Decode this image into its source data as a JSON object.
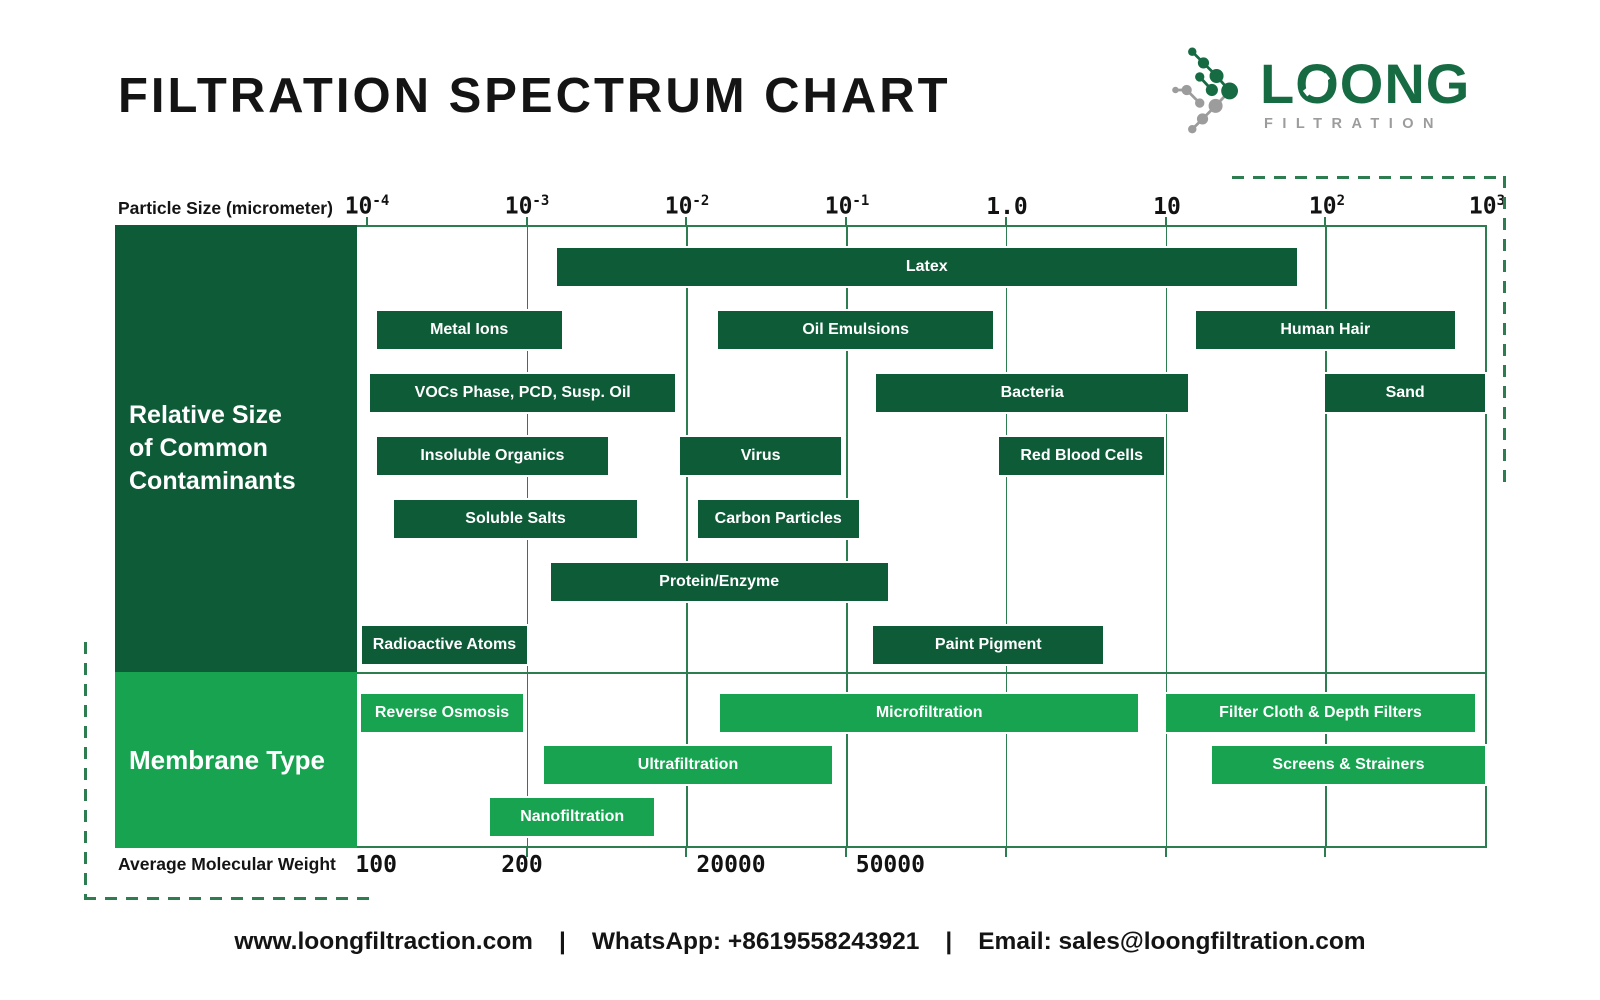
{
  "title": "FILTRATION SPECTRUM CHART",
  "logo": {
    "name_parts": [
      "L",
      "O",
      "ONG"
    ],
    "subtitle": "FILTRATION",
    "green": "#176B43",
    "gray": "#9C9C9C"
  },
  "colors": {
    "contaminant_green": "#0E5B37",
    "membrane_green": "#17A350",
    "grid_green": "#2E7D50"
  },
  "footer": {
    "website": "www.loongfiltraction.com",
    "separator": "|",
    "whatsapp": "WhatsApp: +8619558243921",
    "email": "Email: sales@loongfiltration.com"
  },
  "chart_data": {
    "type": "heatmap",
    "subtype": "log-scale-range-bar-spectrum",
    "x_axis_top": {
      "label": "Particle Size (micrometer)",
      "scale": "log10 micrometers, decades from 1e-4 to 1e3",
      "ticks": [
        {
          "base": "10",
          "sup": "-4",
          "log": -4
        },
        {
          "base": "10",
          "sup": "-3",
          "log": -3
        },
        {
          "base": "10",
          "sup": "-2",
          "log": -2
        },
        {
          "base": "10",
          "sup": "-1",
          "log": -1
        },
        {
          "base": "1.0",
          "sup": "",
          "log": 0
        },
        {
          "base": "10",
          "sup": "",
          "log": 1
        },
        {
          "base": "10",
          "sup": "2",
          "log": 2
        },
        {
          "base": "10",
          "sup": "3",
          "log": 3
        }
      ]
    },
    "x_axis_bottom": {
      "label": "Average Molecular Weight",
      "ticks": [
        {
          "label": "100",
          "x_pct": 1.7
        },
        {
          "label": "200",
          "x_pct": 14.6
        },
        {
          "label": "20000",
          "x_pct": 33.1
        },
        {
          "label": "50000",
          "x_pct": 47.2
        }
      ]
    },
    "grid": "vertical decade gridlines on",
    "legend_position": "none",
    "sections": [
      {
        "label": "Relative Size\nof Common\nContaminants",
        "color": "#0E5B37",
        "rows": [
          [
            {
              "label": "Latex",
              "log_start": -2.81,
              "log_end": 1.82
            }
          ],
          [
            {
              "label": "Metal Ions",
              "log_start": -3.94,
              "log_end": -2.78
            },
            {
              "label": "Oil Emulsions",
              "log_start": -1.8,
              "log_end": -0.08
            },
            {
              "label": "Human Hair",
              "log_start": 1.19,
              "log_end": 2.81
            }
          ],
          [
            {
              "label": "VOCs Phase, PCD, Susp. Oil",
              "log_start": -3.98,
              "log_end": -2.07
            },
            {
              "label": "Bacteria",
              "log_start": -0.81,
              "log_end": 1.14
            },
            {
              "label": "Sand",
              "log_start": 2.0,
              "log_end": 3.0
            }
          ],
          [
            {
              "label": "Insoluble Organics",
              "log_start": -3.94,
              "log_end": -2.49
            },
            {
              "label": "Virus",
              "log_start": -2.04,
              "log_end": -1.03
            },
            {
              "label": "Red Blood Cells",
              "log_start": -0.04,
              "log_end": 0.99
            }
          ],
          [
            {
              "label": "Soluble Salts",
              "log_start": -3.83,
              "log_end": -2.31
            },
            {
              "label": "Carbon Particles",
              "log_start": -1.93,
              "log_end": -0.92
            }
          ],
          [
            {
              "label": "Protein/Enzyme",
              "log_start": -2.85,
              "log_end": -0.74
            }
          ],
          [
            {
              "label": "Radioactive Atoms",
              "log_start": -4.03,
              "log_end": -3.0
            },
            {
              "label": "Paint Pigment",
              "log_start": -0.83,
              "log_end": 0.61
            }
          ]
        ]
      },
      {
        "label": "Membrane Type",
        "color": "#17A350",
        "rows": [
          [
            {
              "label": "Reverse Osmosis",
              "log_start": -4.04,
              "log_end": -3.02
            },
            {
              "label": "Microfiltration",
              "log_start": -1.79,
              "log_end": 0.83
            },
            {
              "label": "Filter Cloth & Depth Filters",
              "log_start": 1.0,
              "log_end": 2.94
            }
          ],
          [
            {
              "label": "Ultrafiltration",
              "log_start": -2.89,
              "log_end": -1.09
            },
            {
              "label": "Screens & Strainers",
              "log_start": 1.29,
              "log_end": 3.0
            }
          ],
          [
            {
              "label": "Nanofiltration",
              "log_start": -3.23,
              "log_end": -2.2
            }
          ]
        ]
      }
    ]
  }
}
